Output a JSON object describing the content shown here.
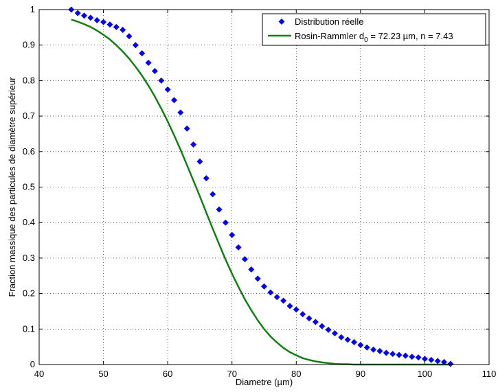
{
  "chart_data": {
    "type": "scatter",
    "title": "",
    "xlabel": "Diametre (µm)",
    "ylabel": "Fraction massique des particules de diamètre supérieur",
    "xlim": [
      40,
      110
    ],
    "ylim": [
      0,
      1
    ],
    "xticks": [
      40,
      50,
      60,
      70,
      80,
      90,
      100,
      110
    ],
    "yticks": [
      0,
      0.1,
      0.2,
      0.3,
      0.4,
      0.5,
      0.6,
      0.7,
      0.8,
      0.9,
      1
    ],
    "grid": true,
    "legend_position": "top-right",
    "series": [
      {
        "name": "Distribution réelle",
        "kind": "scatter",
        "marker": "diamond",
        "color": "#0000ff",
        "x": [
          45,
          46,
          47,
          48,
          49,
          50,
          51,
          52,
          53,
          54,
          55,
          56,
          57,
          58,
          59,
          60,
          61,
          62,
          63,
          64,
          65,
          66,
          67,
          68,
          69,
          70,
          71,
          72,
          73,
          74,
          75,
          76,
          77,
          78,
          79,
          80,
          81,
          82,
          83,
          84,
          85,
          86,
          87,
          88,
          89,
          90,
          91,
          92,
          93,
          94,
          95,
          96,
          97,
          98,
          99,
          100,
          101,
          102,
          103,
          104
        ],
        "y": [
          1.0,
          0.99,
          0.983,
          0.977,
          0.97,
          0.965,
          0.958,
          0.951,
          0.943,
          0.925,
          0.9,
          0.877,
          0.85,
          0.827,
          0.8,
          0.775,
          0.745,
          0.71,
          0.665,
          0.62,
          0.572,
          0.525,
          0.48,
          0.437,
          0.4,
          0.365,
          0.33,
          0.297,
          0.268,
          0.242,
          0.22,
          0.203,
          0.19,
          0.18,
          0.165,
          0.155,
          0.142,
          0.13,
          0.12,
          0.108,
          0.098,
          0.088,
          0.077,
          0.07,
          0.063,
          0.055,
          0.048,
          0.042,
          0.038,
          0.033,
          0.03,
          0.027,
          0.025,
          0.022,
          0.02,
          0.016,
          0.013,
          0.01,
          0.007,
          0.002
        ]
      },
      {
        "name": "Rosin-Rammler d",
        "name_sub": "0",
        "name_suffix": " = 72.23 µm, n = 7.43",
        "kind": "line",
        "color": "#108010",
        "x": [
          45,
          46,
          47,
          48,
          49,
          50,
          51,
          52,
          53,
          54,
          55,
          56,
          57,
          58,
          59,
          60,
          61,
          62,
          63,
          64,
          65,
          66,
          67,
          68,
          69,
          70,
          71,
          72,
          73,
          74,
          75,
          76,
          77,
          78,
          79,
          80,
          81,
          82,
          83,
          84,
          85,
          86,
          87,
          88,
          89,
          90,
          91,
          92,
          93,
          94,
          95,
          96,
          97,
          98,
          99,
          100,
          101,
          102,
          103,
          104
        ],
        "y": [
          0.972,
          0.966,
          0.959,
          0.951,
          0.941,
          0.929,
          0.916,
          0.9,
          0.882,
          0.862,
          0.839,
          0.814,
          0.786,
          0.755,
          0.721,
          0.685,
          0.646,
          0.605,
          0.562,
          0.518,
          0.474,
          0.428,
          0.383,
          0.339,
          0.296,
          0.256,
          0.219,
          0.184,
          0.153,
          0.125,
          0.1,
          0.079,
          0.062,
          0.047,
          0.035,
          0.026,
          0.018,
          0.013,
          0.009,
          0.006,
          0.004,
          0.002,
          0.001,
          0.001,
          0.0,
          0.0,
          0.0,
          0.0,
          0.0,
          0.0,
          0.0,
          0.0,
          0.0,
          0.0,
          0.0,
          0.0,
          0.0,
          0.0,
          0.0,
          0.0
        ]
      }
    ]
  }
}
